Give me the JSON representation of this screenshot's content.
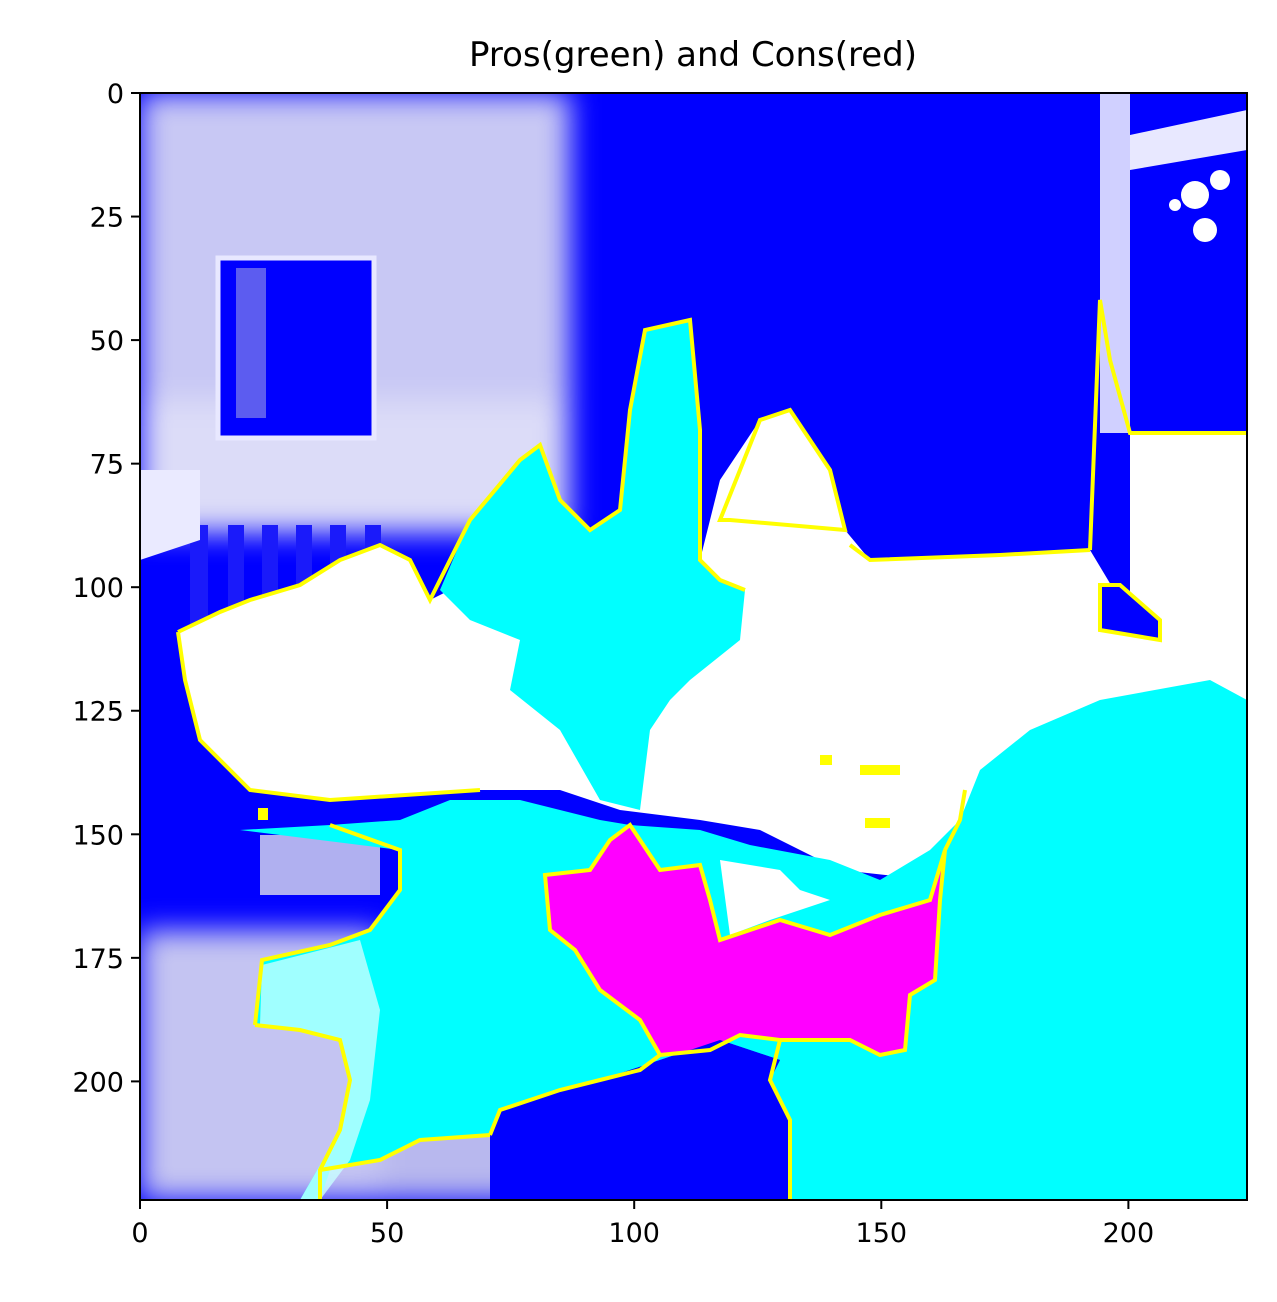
{
  "chart_data": {
    "type": "heatmap",
    "title": "Pros(green) and Cons(red)",
    "xlim": [
      0,
      224
    ],
    "ylim": [
      224,
      0
    ],
    "y_inverted": true,
    "x_ticks": [
      0,
      50,
      100,
      150,
      200
    ],
    "y_ticks": [
      0,
      25,
      50,
      75,
      100,
      125,
      150,
      175,
      200
    ],
    "grid": false,
    "image_description_colors": {
      "background": "#0000ff",
      "light_region": "#ffffff",
      "pros_region": "#00ffff",
      "cons_region": "#ff00ff",
      "boundary": "#ffff00"
    }
  }
}
